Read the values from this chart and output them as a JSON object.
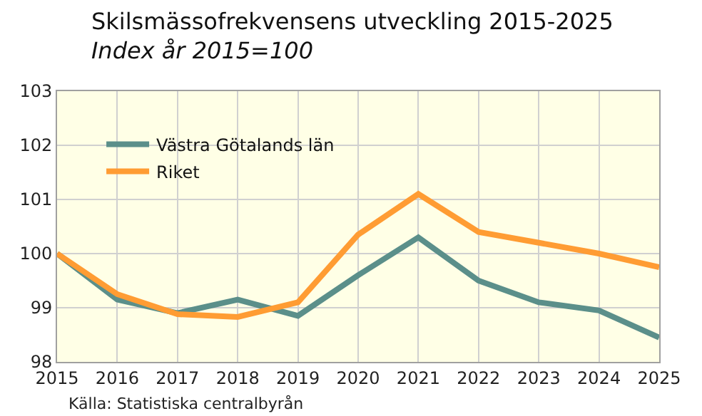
{
  "chart_data": {
    "type": "line",
    "title": "Skilsmässofrekvensens utveckling 2015-2025",
    "subtitle": "Index år 2015=100",
    "annotations": [
      "Källa: Statistiska centralbyrån"
    ],
    "x": [
      2015,
      2016,
      2017,
      2018,
      2019,
      2020,
      2021,
      2022,
      2023,
      2024,
      2025
    ],
    "series": [
      {
        "name": "Västra Götalands län",
        "color": "#5b8f8a",
        "values": [
          100,
          99.15,
          98.9,
          99.15,
          98.85,
          99.6,
          100.3,
          99.5,
          99.1,
          98.95,
          98.45
        ]
      },
      {
        "name": "Riket",
        "color": "#ff9c33",
        "values": [
          100,
          99.25,
          98.88,
          98.83,
          99.1,
          100.35,
          101.1,
          100.4,
          100.2,
          100.0,
          99.75
        ]
      }
    ],
    "xlim": [
      2015,
      2025
    ],
    "xticks": [
      2015,
      2016,
      2017,
      2018,
      2019,
      2020,
      2021,
      2022,
      2023,
      2024,
      2025
    ],
    "ylim": [
      98,
      103
    ],
    "yticks": [
      98,
      99,
      100,
      101,
      102,
      103
    ],
    "grid": true,
    "legend": "top left",
    "marker": "none",
    "line_style": "solid"
  }
}
